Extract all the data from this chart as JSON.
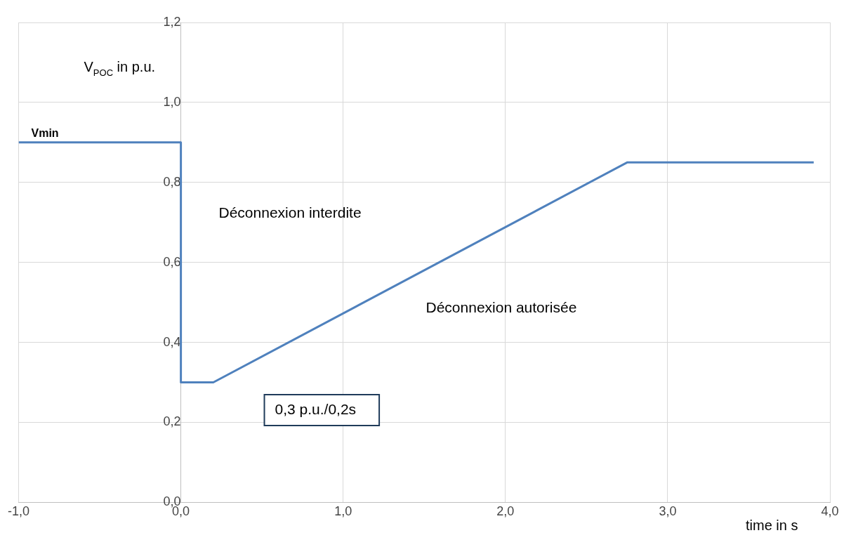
{
  "chart_data": {
    "type": "line",
    "ylabel": "V$_{POC}$ in p.u.",
    "xlabel": "time in s",
    "xlim": [
      -1,
      4
    ],
    "xticks": [
      {
        "value": -1,
        "label": "-1,0"
      },
      {
        "value": 0,
        "label": "0,0"
      },
      {
        "value": 1,
        "label": "1,0"
      },
      {
        "value": 2,
        "label": "2,0"
      },
      {
        "value": 3,
        "label": "3,0"
      },
      {
        "value": 4,
        "label": "4,0"
      }
    ],
    "ylim": [
      0,
      1.2
    ],
    "yticks": [
      {
        "value": 0,
        "label": "0,0"
      },
      {
        "value": 0.2,
        "label": "0,2"
      },
      {
        "value": 0.4,
        "label": "0,4"
      },
      {
        "value": 0.6,
        "label": "0,6"
      },
      {
        "value": 0.8,
        "label": "0,8"
      },
      {
        "value": 1,
        "label": "1,0"
      },
      {
        "value": 1.2,
        "label": "1,2"
      }
    ],
    "series": [
      {
        "color": "#4f81bd",
        "x": [
          -1,
          0,
          0,
          0.2,
          2.75,
          3.9
        ],
        "values": [
          0.9,
          0.9,
          0.3,
          0.3,
          0.85,
          0.85
        ]
      }
    ],
    "annotations": [
      {
        "text": "Vmin",
        "x": -1,
        "y": 0.9
      },
      "Déconnexion interdite",
      "Déconnexion autorisée",
      "0,3 p.u./0,2s"
    ],
    "grid": true,
    "legend": false,
    "marker": "none",
    "line_style": "solid"
  }
}
